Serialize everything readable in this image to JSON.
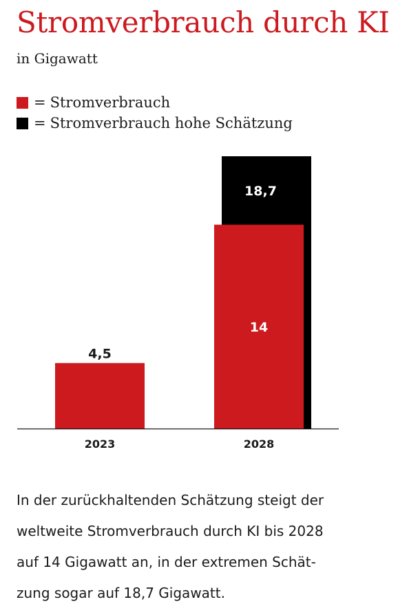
{
  "title": "Stromverbrauch durch KI",
  "subtitle": "in Gigawatt",
  "legend": {
    "items": [
      {
        "label": "Stromverbrauch",
        "color": "#cc1a1f"
      },
      {
        "label": "Stromverbrauch hohe Schätzung",
        "color": "#000000"
      }
    ],
    "equals": "="
  },
  "colors": {
    "accent": "#cc1a1f",
    "base": "#cc1a1f",
    "high": "#000000",
    "title": "#cc1a1f"
  },
  "chart_data": {
    "type": "bar",
    "stacked": "overlay",
    "categories": [
      "2023",
      "2028"
    ],
    "series": [
      {
        "name": "Stromverbrauch",
        "values": [
          4.5,
          14
        ],
        "labels": [
          "4,5",
          "14"
        ]
      },
      {
        "name": "Stromverbrauch hohe Schätzung",
        "values": [
          null,
          18.7
        ],
        "labels": [
          "",
          "18,7"
        ]
      }
    ],
    "title": "Stromverbrauch durch KI",
    "subtitle": "in Gigawatt",
    "ylim": [
      0,
      20.5
    ],
    "grid": false,
    "legend_position": "top-left"
  },
  "caption": {
    "lines": [
      "In der zurückhaltenden Schätzung steigt der",
      "weltweite Stromverbrauch durch KI bis 2028",
      "auf 14 Gigawatt an, in der extremen Schät-",
      "zung sogar auf 18,7 Gigawatt."
    ]
  }
}
